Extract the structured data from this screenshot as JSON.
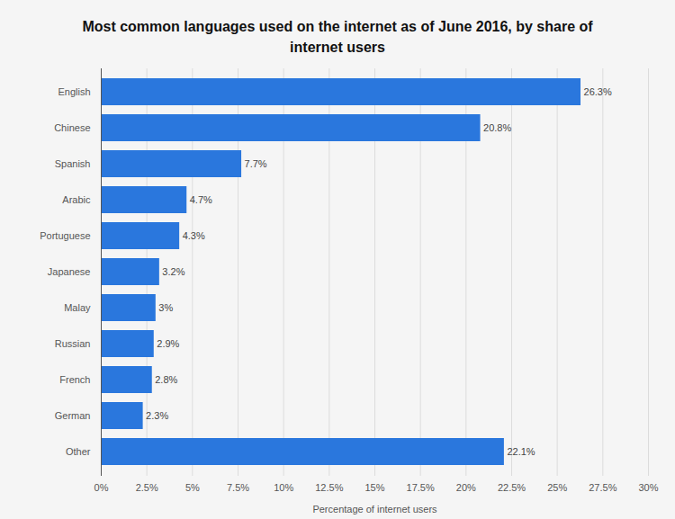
{
  "chart_data": {
    "type": "bar",
    "title": "Most common languages used on the internet as of June 2016, by share of internet users",
    "orientation": "horizontal",
    "categories": [
      "English",
      "Chinese",
      "Spanish",
      "Arabic",
      "Portuguese",
      "Japanese",
      "Malay",
      "Russian",
      "French",
      "German",
      "Other"
    ],
    "values": [
      26.3,
      20.8,
      7.7,
      4.7,
      4.3,
      3.2,
      3,
      2.9,
      2.8,
      2.3,
      22.1
    ],
    "value_labels": [
      "26.3%",
      "20.8%",
      "7.7%",
      "4.7%",
      "4.3%",
      "3.2%",
      "3%",
      "2.9%",
      "2.8%",
      "2.3%",
      "22.1%"
    ],
    "data_labels": true,
    "color": "#2a77dd",
    "x_label": "Percentage of internet users",
    "xlim": [
      0,
      30
    ],
    "xticks": [
      {
        "value": 0,
        "label": "0%"
      },
      {
        "value": 2.5,
        "label": "2.5%"
      },
      {
        "value": 5,
        "label": "5%"
      },
      {
        "value": 7.5,
        "label": "7.5%"
      },
      {
        "value": 10,
        "label": "10%"
      },
      {
        "value": 12.5,
        "label": "12.5%"
      },
      {
        "value": 15,
        "label": "15%"
      },
      {
        "value": 17.5,
        "label": "17.5%"
      },
      {
        "value": 20,
        "label": "20%"
      },
      {
        "value": 22.5,
        "label": "22.5%"
      },
      {
        "value": 25,
        "label": "25%"
      },
      {
        "value": 27.5,
        "label": "27.5%"
      },
      {
        "value": 30,
        "label": "30%"
      }
    ],
    "grid": true
  }
}
